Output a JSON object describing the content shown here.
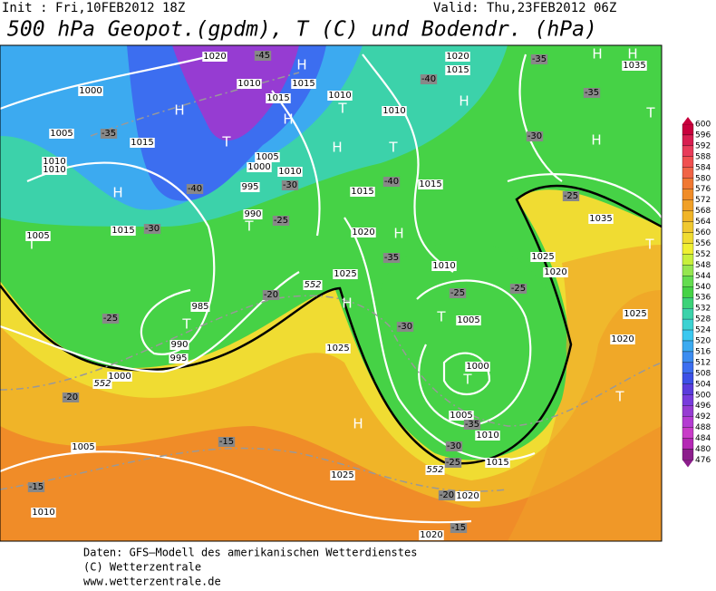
{
  "header": {
    "init": "Init : Fri,10FEB2012 18Z",
    "valid": "Valid: Thu,23FEB2012 06Z",
    "title": "500 hPa Geopot.(gpdm), T (C) und Bodendr. (hPa)"
  },
  "map_labels": {
    "isobars": [
      "1020",
      "1010",
      "1015",
      "1015",
      "1010",
      "1010",
      "1020",
      "1015",
      "1000",
      "1005",
      "1015",
      "1010",
      "1010",
      "1005",
      "1000",
      "1010",
      "995",
      "1015",
      "1015",
      "990",
      "1015",
      "1020",
      "1005",
      "1035",
      "1025",
      "1020",
      "1010",
      "1025",
      "985",
      "1005",
      "1025",
      "1020",
      "1025",
      "990",
      "995",
      "1000",
      "1000",
      "1005",
      "1010",
      "1015",
      "1005",
      "1025",
      "1020",
      "1010",
      "1020",
      "1035"
    ],
    "isotherms": [
      "-45",
      "-40",
      "-35",
      "-35",
      "-35",
      "-30",
      "-40",
      "-30",
      "-25",
      "-30",
      "-40",
      "-25",
      "-35",
      "-20",
      "-25",
      "-25",
      "-30",
      "-25",
      "-20",
      "-35",
      "-30",
      "-25",
      "-15",
      "-20",
      "-15",
      "-15"
    ],
    "contour_552": [
      "552",
      "552",
      "552"
    ],
    "centers": [
      "H",
      "H",
      "T",
      "H",
      "T",
      "H",
      "T",
      "H",
      "H",
      "T",
      "T",
      "H",
      "H",
      "T",
      "T",
      "T",
      "H",
      "T",
      "H",
      "H",
      "T",
      "H",
      "T"
    ]
  },
  "colorbar": {
    "levels": [
      600,
      596,
      592,
      588,
      584,
      580,
      576,
      572,
      568,
      564,
      560,
      556,
      552,
      548,
      544,
      540,
      536,
      532,
      528,
      524,
      520,
      516,
      512,
      508,
      504,
      500,
      496,
      492,
      488,
      484,
      480,
      476
    ],
    "colors": [
      "#c8003c",
      "#d81e50",
      "#e83c5a",
      "#f05050",
      "#f06446",
      "#f07832",
      "#f08c28",
      "#f0a028",
      "#f0b428",
      "#f0c830",
      "#f0dc32",
      "#f0f032",
      "#c8f03c",
      "#96e650",
      "#64dc50",
      "#46d246",
      "#3cd278",
      "#3cd2aa",
      "#3cd2d2",
      "#3cc8f0",
      "#3caaf0",
      "#3c8cf0",
      "#3c6ef0",
      "#3c50e6",
      "#5a3cdc",
      "#783cdc",
      "#963cd2",
      "#b43cd2",
      "#c83cc8",
      "#b428b4",
      "#8c1e8c"
    ]
  },
  "footer": [
    "Daten: GFS—Modell des amerikanischen Wetterdienstes",
    "(C) Wetterzentrale",
    "www.wetterzentrale.de"
  ]
}
